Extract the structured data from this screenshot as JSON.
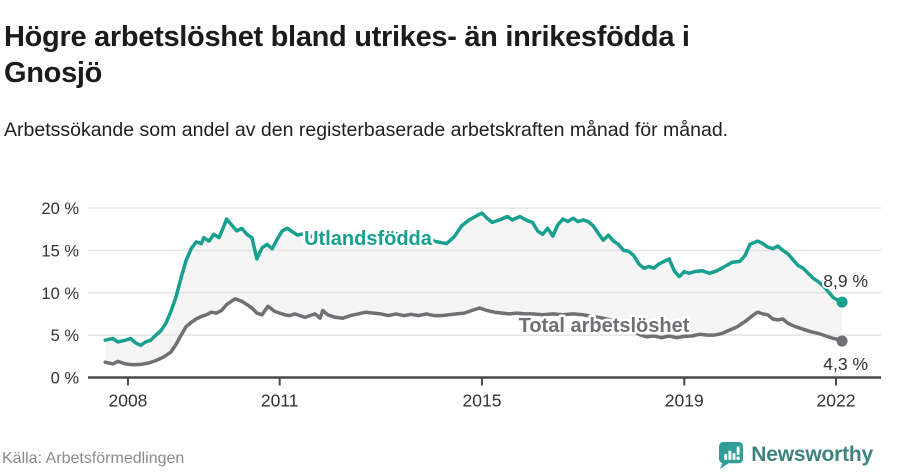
{
  "header": {
    "title": "Högre arbetslöshet bland utrikes- än inrikesfödda i Gnosjö",
    "subtitle": "Arbetssökande som andel av den registerbaserade arbetskraften månad för månad."
  },
  "footer": {
    "source": "Källa: Arbetsförmedlingen",
    "brand": "Newsworthy"
  },
  "colors": {
    "accent_teal": "#17a08f",
    "line_gray": "#707074",
    "band_fill": "#f5f5f5",
    "grid": "#e3e3e3",
    "axis": "#4a4a4a",
    "axis_text": "#333333",
    "brand_teal": "#2e9e96",
    "brand_text": "#3d837e"
  },
  "chart_data": {
    "type": "line",
    "title": "Högre arbetslöshet bland utrikes- än inrikesfödda i Gnosjö",
    "ylabel": "",
    "xlabel": "",
    "grid": true,
    "legend_position": "inline-labels",
    "xlim": [
      2007.21,
      2022.89
    ],
    "ylim": [
      0,
      20
    ],
    "x_ticks": [
      {
        "value": 2008,
        "label": "2008"
      },
      {
        "value": 2011,
        "label": "2011"
      },
      {
        "value": 2015,
        "label": "2015"
      },
      {
        "value": 2019,
        "label": "2019"
      },
      {
        "value": 2022,
        "label": "2022"
      }
    ],
    "y_ticks": [
      {
        "value": 0,
        "label": "0 %"
      },
      {
        "value": 5,
        "label": "5 %"
      },
      {
        "value": 10,
        "label": "10 %"
      },
      {
        "value": 15,
        "label": "15 %"
      },
      {
        "value": 20,
        "label": "20 %"
      }
    ],
    "series": [
      {
        "name": "Utlandsfödda",
        "color": "#17a08f",
        "end_label": "8,9 %",
        "end_value": 8.9,
        "points": [
          [
            2007.55,
            4.4
          ],
          [
            2007.7,
            4.6
          ],
          [
            2007.8,
            4.2
          ],
          [
            2007.95,
            4.4
          ],
          [
            2008.05,
            4.6
          ],
          [
            2008.15,
            4.1
          ],
          [
            2008.25,
            3.8
          ],
          [
            2008.35,
            4.2
          ],
          [
            2008.45,
            4.4
          ],
          [
            2008.55,
            5.0
          ],
          [
            2008.65,
            5.5
          ],
          [
            2008.75,
            6.4
          ],
          [
            2008.85,
            7.8
          ],
          [
            2008.95,
            9.5
          ],
          [
            2009.05,
            11.8
          ],
          [
            2009.15,
            13.8
          ],
          [
            2009.25,
            15.2
          ],
          [
            2009.35,
            16.0
          ],
          [
            2009.45,
            15.8
          ],
          [
            2009.5,
            16.5
          ],
          [
            2009.6,
            16.1
          ],
          [
            2009.7,
            16.9
          ],
          [
            2009.8,
            16.5
          ],
          [
            2009.9,
            17.9
          ],
          [
            2009.95,
            18.7
          ],
          [
            2010.05,
            18.0
          ],
          [
            2010.15,
            17.3
          ],
          [
            2010.25,
            17.6
          ],
          [
            2010.35,
            16.9
          ],
          [
            2010.45,
            16.5
          ],
          [
            2010.55,
            14.0
          ],
          [
            2010.65,
            15.3
          ],
          [
            2010.75,
            15.7
          ],
          [
            2010.85,
            15.2
          ],
          [
            2010.95,
            16.3
          ],
          [
            2011.05,
            17.3
          ],
          [
            2011.15,
            17.6
          ],
          [
            2011.25,
            17.2
          ],
          [
            2011.35,
            16.8
          ],
          [
            2011.5,
            17.0
          ],
          [
            2011.65,
            16.6
          ],
          [
            2011.8,
            16.4
          ],
          [
            2011.95,
            16.7
          ],
          [
            2012.1,
            16.4
          ],
          [
            2012.25,
            16.2
          ],
          [
            2012.4,
            16.5
          ],
          [
            2012.55,
            16.7
          ],
          [
            2012.7,
            16.9
          ],
          [
            2012.85,
            16.6
          ],
          [
            2013.0,
            16.9
          ],
          [
            2013.15,
            16.7
          ],
          [
            2013.3,
            17.0
          ],
          [
            2013.45,
            16.8
          ],
          [
            2013.6,
            17.0
          ],
          [
            2013.75,
            16.6
          ],
          [
            2013.9,
            16.3
          ],
          [
            2014.05,
            16.1
          ],
          [
            2014.2,
            15.9
          ],
          [
            2014.3,
            15.8
          ],
          [
            2014.45,
            16.6
          ],
          [
            2014.6,
            17.9
          ],
          [
            2014.75,
            18.6
          ],
          [
            2014.9,
            19.1
          ],
          [
            2015.0,
            19.4
          ],
          [
            2015.1,
            18.8
          ],
          [
            2015.2,
            18.3
          ],
          [
            2015.35,
            18.6
          ],
          [
            2015.5,
            19.0
          ],
          [
            2015.6,
            18.6
          ],
          [
            2015.75,
            19.0
          ],
          [
            2015.9,
            18.5
          ],
          [
            2016.0,
            18.3
          ],
          [
            2016.1,
            17.3
          ],
          [
            2016.2,
            16.9
          ],
          [
            2016.3,
            17.6
          ],
          [
            2016.4,
            16.7
          ],
          [
            2016.5,
            18.0
          ],
          [
            2016.6,
            18.7
          ],
          [
            2016.7,
            18.4
          ],
          [
            2016.8,
            18.8
          ],
          [
            2016.9,
            18.4
          ],
          [
            2017.0,
            18.6
          ],
          [
            2017.1,
            18.4
          ],
          [
            2017.2,
            17.9
          ],
          [
            2017.3,
            17.0
          ],
          [
            2017.4,
            16.2
          ],
          [
            2017.5,
            16.8
          ],
          [
            2017.6,
            16.1
          ],
          [
            2017.7,
            15.7
          ],
          [
            2017.8,
            15.0
          ],
          [
            2017.9,
            14.9
          ],
          [
            2018.0,
            14.4
          ],
          [
            2018.1,
            13.4
          ],
          [
            2018.2,
            12.9
          ],
          [
            2018.3,
            13.1
          ],
          [
            2018.4,
            12.9
          ],
          [
            2018.5,
            13.4
          ],
          [
            2018.6,
            13.7
          ],
          [
            2018.7,
            14.0
          ],
          [
            2018.8,
            12.6
          ],
          [
            2018.9,
            11.9
          ],
          [
            2019.0,
            12.5
          ],
          [
            2019.1,
            12.3
          ],
          [
            2019.2,
            12.5
          ],
          [
            2019.35,
            12.6
          ],
          [
            2019.5,
            12.3
          ],
          [
            2019.65,
            12.6
          ],
          [
            2019.8,
            13.1
          ],
          [
            2019.95,
            13.6
          ],
          [
            2020.1,
            13.7
          ],
          [
            2020.2,
            14.4
          ],
          [
            2020.3,
            15.7
          ],
          [
            2020.45,
            16.1
          ],
          [
            2020.55,
            15.8
          ],
          [
            2020.65,
            15.4
          ],
          [
            2020.75,
            15.2
          ],
          [
            2020.85,
            15.5
          ],
          [
            2020.95,
            15.0
          ],
          [
            2021.05,
            14.6
          ],
          [
            2021.15,
            13.9
          ],
          [
            2021.25,
            13.2
          ],
          [
            2021.35,
            12.9
          ],
          [
            2021.45,
            12.3
          ],
          [
            2021.55,
            11.7
          ],
          [
            2021.65,
            11.3
          ],
          [
            2021.75,
            10.8
          ],
          [
            2021.85,
            10.1
          ],
          [
            2021.95,
            9.4
          ],
          [
            2022.05,
            9.1
          ],
          [
            2022.12,
            8.9
          ]
        ]
      },
      {
        "name": "Total arbetslöshet",
        "color": "#707074",
        "end_label": "4,3 %",
        "end_value": 4.3,
        "points": [
          [
            2007.55,
            1.8
          ],
          [
            2007.7,
            1.6
          ],
          [
            2007.8,
            1.9
          ],
          [
            2007.95,
            1.6
          ],
          [
            2008.1,
            1.5
          ],
          [
            2008.25,
            1.55
          ],
          [
            2008.4,
            1.7
          ],
          [
            2008.55,
            2.0
          ],
          [
            2008.7,
            2.4
          ],
          [
            2008.85,
            3.0
          ],
          [
            2008.95,
            3.9
          ],
          [
            2009.05,
            5.0
          ],
          [
            2009.15,
            6.0
          ],
          [
            2009.25,
            6.5
          ],
          [
            2009.35,
            6.9
          ],
          [
            2009.45,
            7.2
          ],
          [
            2009.55,
            7.4
          ],
          [
            2009.65,
            7.7
          ],
          [
            2009.75,
            7.6
          ],
          [
            2009.85,
            7.9
          ],
          [
            2009.95,
            8.6
          ],
          [
            2010.05,
            9.0
          ],
          [
            2010.12,
            9.3
          ],
          [
            2010.25,
            9.0
          ],
          [
            2010.35,
            8.6
          ],
          [
            2010.45,
            8.2
          ],
          [
            2010.55,
            7.6
          ],
          [
            2010.65,
            7.4
          ],
          [
            2010.77,
            8.4
          ],
          [
            2010.9,
            7.8
          ],
          [
            2011.0,
            7.6
          ],
          [
            2011.1,
            7.4
          ],
          [
            2011.2,
            7.3
          ],
          [
            2011.3,
            7.5
          ],
          [
            2011.4,
            7.3
          ],
          [
            2011.5,
            7.1
          ],
          [
            2011.6,
            7.3
          ],
          [
            2011.7,
            7.5
          ],
          [
            2011.8,
            7.0
          ],
          [
            2011.85,
            7.9
          ],
          [
            2011.95,
            7.4
          ],
          [
            2012.1,
            7.1
          ],
          [
            2012.25,
            7.0
          ],
          [
            2012.4,
            7.3
          ],
          [
            2012.55,
            7.5
          ],
          [
            2012.7,
            7.7
          ],
          [
            2012.85,
            7.6
          ],
          [
            2013.0,
            7.5
          ],
          [
            2013.15,
            7.3
          ],
          [
            2013.3,
            7.5
          ],
          [
            2013.45,
            7.3
          ],
          [
            2013.6,
            7.45
          ],
          [
            2013.75,
            7.3
          ],
          [
            2013.9,
            7.5
          ],
          [
            2014.05,
            7.3
          ],
          [
            2014.2,
            7.3
          ],
          [
            2014.35,
            7.4
          ],
          [
            2014.5,
            7.5
          ],
          [
            2014.65,
            7.6
          ],
          [
            2014.8,
            7.9
          ],
          [
            2014.95,
            8.2
          ],
          [
            2015.1,
            7.9
          ],
          [
            2015.25,
            7.7
          ],
          [
            2015.4,
            7.6
          ],
          [
            2015.55,
            7.5
          ],
          [
            2015.7,
            7.6
          ],
          [
            2015.85,
            7.5
          ],
          [
            2016.0,
            7.5
          ],
          [
            2016.2,
            7.4
          ],
          [
            2016.4,
            7.5
          ],
          [
            2016.6,
            7.4
          ],
          [
            2016.8,
            7.5
          ],
          [
            2017.0,
            7.4
          ],
          [
            2017.2,
            7.2
          ],
          [
            2017.4,
            7.0
          ],
          [
            2017.6,
            6.7
          ],
          [
            2017.8,
            6.2
          ],
          [
            2017.95,
            5.7
          ],
          [
            2018.1,
            5.1
          ],
          [
            2018.25,
            4.8
          ],
          [
            2018.4,
            4.9
          ],
          [
            2018.55,
            4.7
          ],
          [
            2018.7,
            4.9
          ],
          [
            2018.85,
            4.7
          ],
          [
            2019.0,
            4.85
          ],
          [
            2019.15,
            4.9
          ],
          [
            2019.3,
            5.1
          ],
          [
            2019.45,
            5.0
          ],
          [
            2019.6,
            5.0
          ],
          [
            2019.75,
            5.2
          ],
          [
            2019.9,
            5.6
          ],
          [
            2020.05,
            6.0
          ],
          [
            2020.2,
            6.6
          ],
          [
            2020.35,
            7.3
          ],
          [
            2020.45,
            7.7
          ],
          [
            2020.55,
            7.5
          ],
          [
            2020.65,
            7.4
          ],
          [
            2020.75,
            6.9
          ],
          [
            2020.85,
            6.8
          ],
          [
            2020.95,
            6.9
          ],
          [
            2021.05,
            6.4
          ],
          [
            2021.2,
            6.0
          ],
          [
            2021.35,
            5.7
          ],
          [
            2021.5,
            5.4
          ],
          [
            2021.65,
            5.2
          ],
          [
            2021.8,
            4.9
          ],
          [
            2021.95,
            4.6
          ],
          [
            2022.05,
            4.5
          ],
          [
            2022.12,
            4.3
          ]
        ]
      }
    ]
  }
}
